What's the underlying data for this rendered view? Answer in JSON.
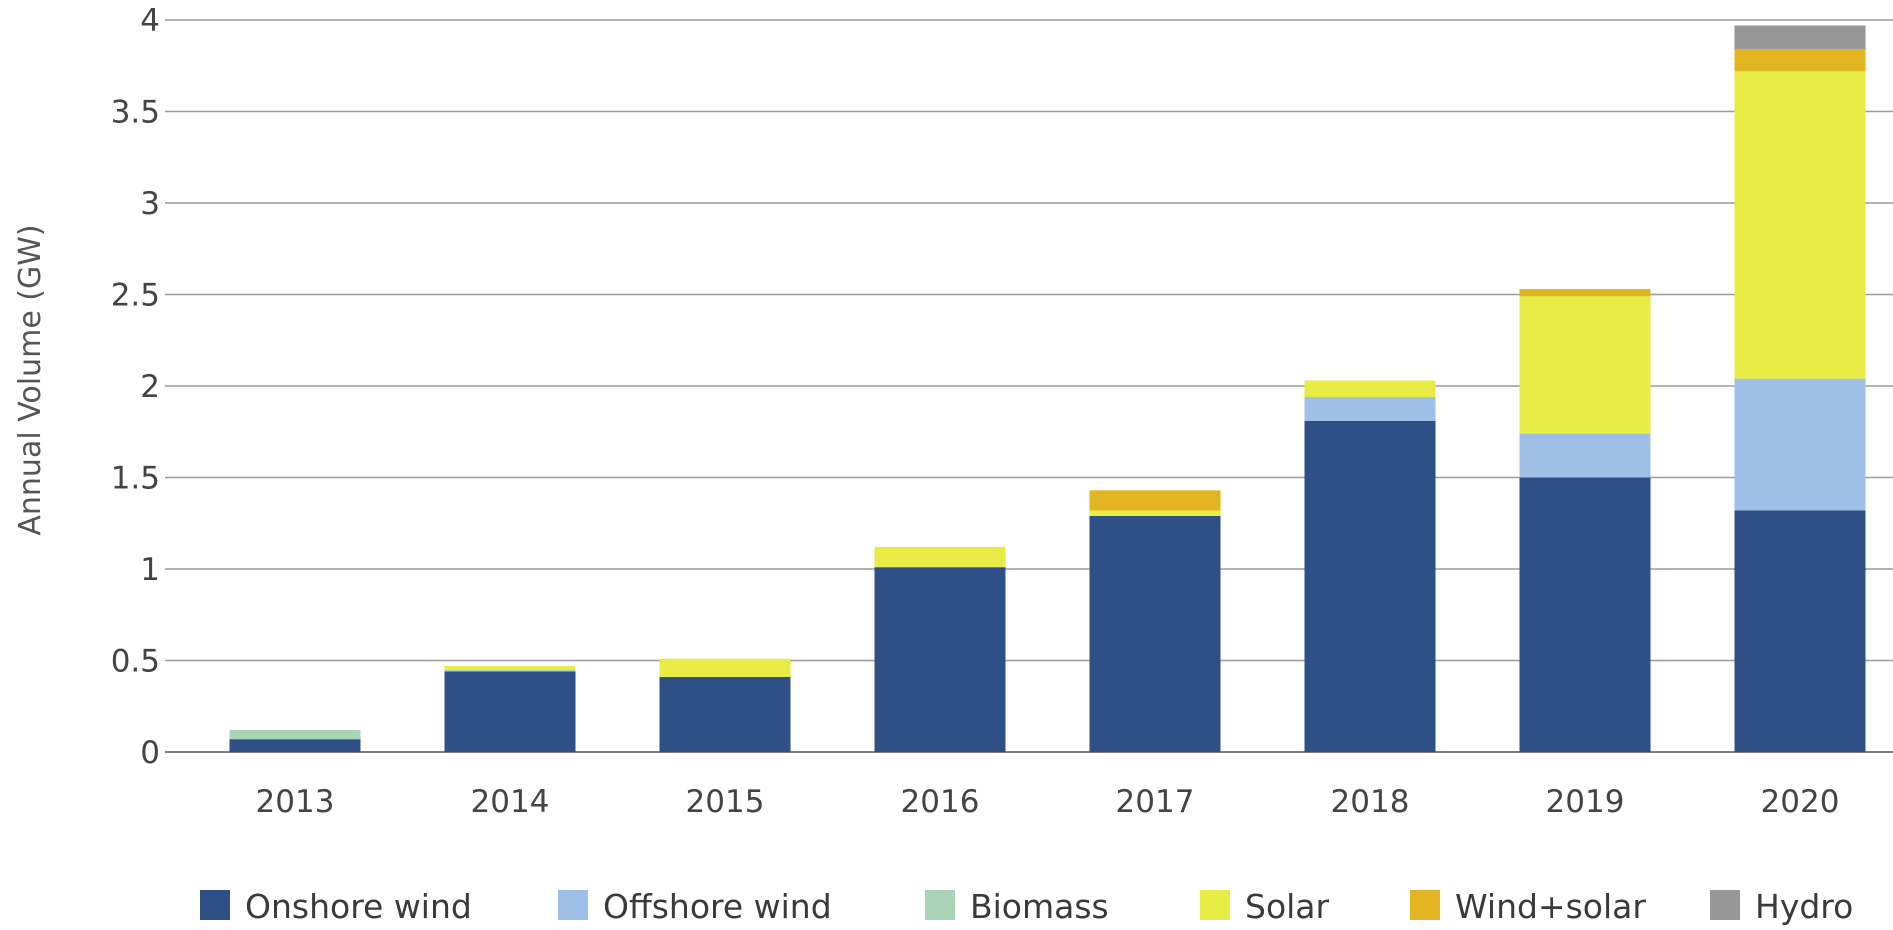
{
  "chart_data": {
    "type": "bar",
    "stacked": true,
    "title": "",
    "xlabel": "",
    "ylabel": "Annual Volume (GW)",
    "ylim": [
      0,
      4
    ],
    "yticks": [
      "0",
      "0.5",
      "1",
      "1.5",
      "2",
      "2.5",
      "3",
      "3.5",
      "4"
    ],
    "grid": true,
    "legend_position": "bottom",
    "categories": [
      "2013",
      "2014",
      "2015",
      "2016",
      "2017",
      "2018",
      "2019",
      "2020"
    ],
    "series": [
      {
        "name": "Onshore wind",
        "color": "#2f4f87",
        "values": [
          0.07,
          0.44,
          0.41,
          1.01,
          1.29,
          1.81,
          1.5,
          1.32
        ]
      },
      {
        "name": "Offshore wind",
        "color": "#9fc0e6",
        "values": [
          0.0,
          0.0,
          0.0,
          0.0,
          0.0,
          0.13,
          0.24,
          0.72
        ]
      },
      {
        "name": "Biomass",
        "color": "#a9d4b6",
        "values": [
          0.05,
          0.01,
          0.0,
          0.0,
          0.0,
          0.0,
          0.0,
          0.0
        ]
      },
      {
        "name": "Solar",
        "color": "#e8ec44",
        "values": [
          0.0,
          0.02,
          0.1,
          0.11,
          0.03,
          0.09,
          0.75,
          1.68
        ]
      },
      {
        "name": "Wind+solar",
        "color": "#e3b422",
        "values": [
          0.0,
          0.0,
          0.0,
          0.0,
          0.11,
          0.0,
          0.04,
          0.12
        ]
      },
      {
        "name": "Hydro",
        "color": "#979797",
        "values": [
          0.0,
          0.0,
          0.0,
          0.0,
          0.0,
          0.0,
          0.0,
          0.13
        ]
      }
    ]
  }
}
